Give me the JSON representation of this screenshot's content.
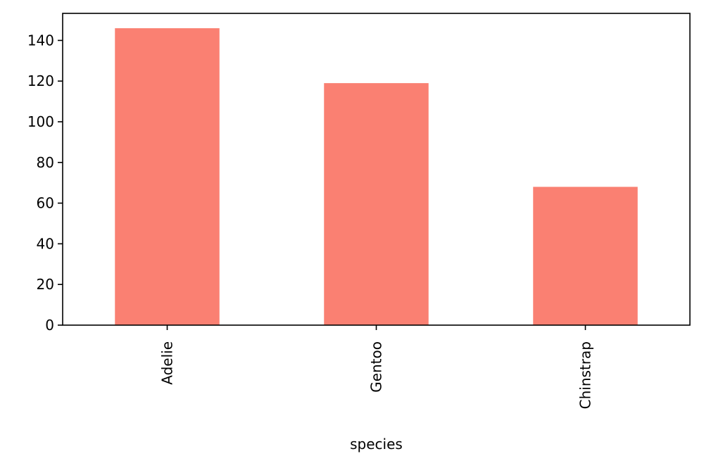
{
  "chart_data": {
    "type": "bar",
    "categories": [
      "Adelie",
      "Gentoo",
      "Chinstrap"
    ],
    "values": [
      146,
      119,
      68
    ],
    "title": "",
    "xlabel": "species",
    "ylabel": "",
    "ylim": [
      0,
      153.3
    ],
    "yticks": [
      0,
      20,
      40,
      60,
      80,
      100,
      120,
      140
    ],
    "ytick_labels": [
      "0",
      "20",
      "40",
      "60",
      "80",
      "100",
      "120",
      "140"
    ],
    "xtick_rotation": "vertical",
    "grid": false,
    "legend": "none",
    "bar_color": "#fa8072",
    "axis_color": "#000000"
  }
}
